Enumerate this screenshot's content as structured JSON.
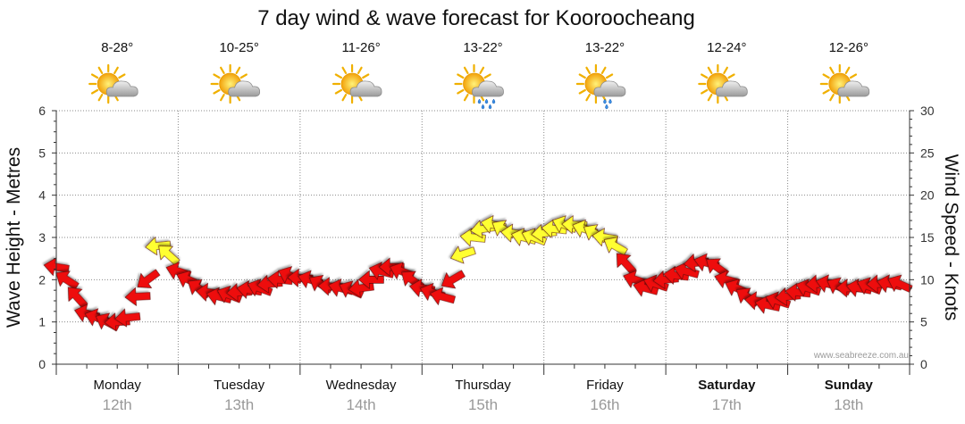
{
  "chart_data": {
    "type": "line",
    "title": "7 day wind & wave forecast for Kooroocheang",
    "ylabel_left": "Wave Height - Metres",
    "ylabel_right": "Wind Speed - Knots",
    "ylim_left": [
      0,
      6
    ],
    "ylim_right": [
      0,
      30
    ],
    "yticks_left": [
      "0",
      "1",
      "2",
      "3",
      "4",
      "5",
      "6"
    ],
    "yticks_right": [
      "0",
      "5",
      "10",
      "15",
      "20",
      "25",
      "30"
    ],
    "grid": true,
    "credit": "www.seabreeze.com.au",
    "days": [
      {
        "day": "Monday",
        "date": "12th",
        "temp": "8-28°",
        "weather": "partly-cloudy-icon",
        "bold": false
      },
      {
        "day": "Tuesday",
        "date": "13th",
        "temp": "10-25°",
        "weather": "partly-cloudy-icon",
        "bold": false
      },
      {
        "day": "Wednesday",
        "date": "14th",
        "temp": "11-26°",
        "weather": "partly-cloudy-icon",
        "bold": false
      },
      {
        "day": "Thursday",
        "date": "15th",
        "temp": "13-22°",
        "weather": "showers-icon",
        "bold": false
      },
      {
        "day": "Friday",
        "date": "16th",
        "temp": "13-22°",
        "weather": "light-showers-icon",
        "bold": false
      },
      {
        "day": "Saturday",
        "date": "17th",
        "temp": "12-24°",
        "weather": "partly-cloudy-icon",
        "bold": true
      },
      {
        "day": "Sunday",
        "date": "18th",
        "temp": "12-26°",
        "weather": "partly-cloudy-icon",
        "bold": true
      }
    ],
    "series": [
      {
        "unit": "knots",
        "x_hours": [
          0,
          2,
          4,
          6,
          8,
          10,
          12,
          14,
          16,
          18,
          20,
          22,
          24,
          26,
          28,
          30,
          32,
          34,
          36,
          38,
          40,
          42,
          44,
          46,
          48,
          50,
          52,
          54,
          56,
          58,
          60,
          62,
          64,
          66,
          68,
          70,
          72,
          74,
          76,
          78,
          80,
          82,
          84,
          86,
          88,
          90,
          92,
          94,
          96,
          98,
          100,
          102,
          104,
          106,
          108,
          110,
          112,
          114,
          116,
          118,
          120,
          122,
          124,
          126,
          128,
          130,
          132,
          134,
          136,
          138,
          140,
          142,
          144,
          146,
          148,
          150,
          152,
          154,
          156,
          158,
          160,
          162,
          164,
          166
        ],
        "values": [
          11.5,
          10,
          8,
          6,
          5.5,
          5,
          5,
          5.5,
          8,
          10,
          14,
          13,
          11,
          10,
          9,
          8.5,
          8,
          8.2,
          8.5,
          8.8,
          9,
          9.5,
          10,
          10.5,
          10.2,
          10,
          9.5,
          9.2,
          9,
          8.8,
          9,
          10,
          11,
          11.5,
          11,
          10,
          9,
          8.5,
          8,
          10,
          13,
          15,
          16,
          16.5,
          16,
          15.5,
          15,
          15,
          15.5,
          16,
          16.5,
          16.5,
          16,
          15.5,
          15,
          14,
          12,
          10,
          9,
          9.5,
          10,
          10.5,
          11,
          12,
          12,
          11.5,
          10,
          9,
          8,
          7.5,
          7,
          7.5,
          8,
          8.5,
          9,
          9.5,
          9.5,
          9.2,
          9,
          9,
          9.2,
          9.5,
          9.5,
          9.5
        ]
      }
    ]
  }
}
